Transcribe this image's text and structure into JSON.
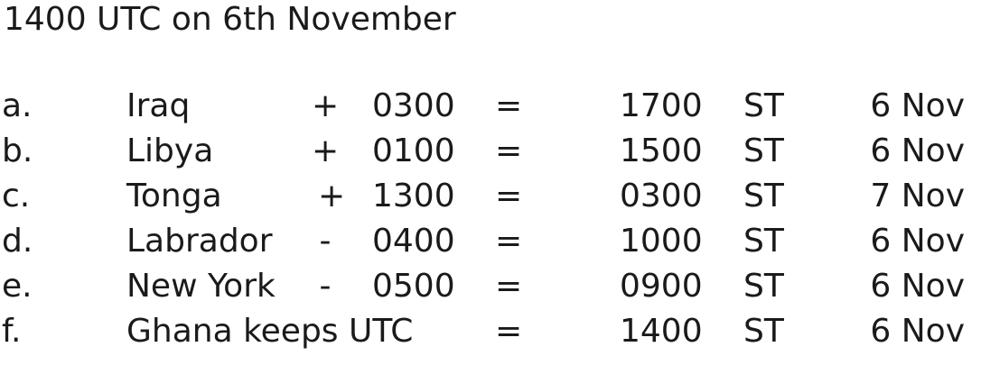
{
  "heading": "1400 UTC on 6th November",
  "rows": [
    {
      "letter": "a.",
      "place": "Iraq",
      "sign": "+",
      "offset": "0300",
      "equals": "=",
      "time": "1700",
      "st": "ST",
      "date": "6 Nov"
    },
    {
      "letter": "b.",
      "place": "Libya",
      "sign": "+",
      "offset": "0100",
      "equals": "=",
      "time": "1500",
      "st": "ST",
      "date": "6 Nov"
    },
    {
      "letter": "c.",
      "place": "Tonga",
      "sign": "+",
      "offset": "1300",
      "equals": "=",
      "time": "0300",
      "st": "ST",
      "date": "7 Nov"
    },
    {
      "letter": "d.",
      "place": "Labrador",
      "sign": "-",
      "offset": "0400",
      "equals": "=",
      "time": "1000",
      "st": "ST",
      "date": "6 Nov"
    },
    {
      "letter": "e.",
      "place": "New York",
      "sign": "-",
      "offset": "0500",
      "equals": "=",
      "time": "0900",
      "st": "ST",
      "date": "6 Nov"
    },
    {
      "letter": "f.",
      "place": "Ghana keeps UTC",
      "sign": "",
      "offset": "",
      "equals": "=",
      "time": "1400",
      "st": "ST",
      "date": "6 Nov"
    }
  ]
}
